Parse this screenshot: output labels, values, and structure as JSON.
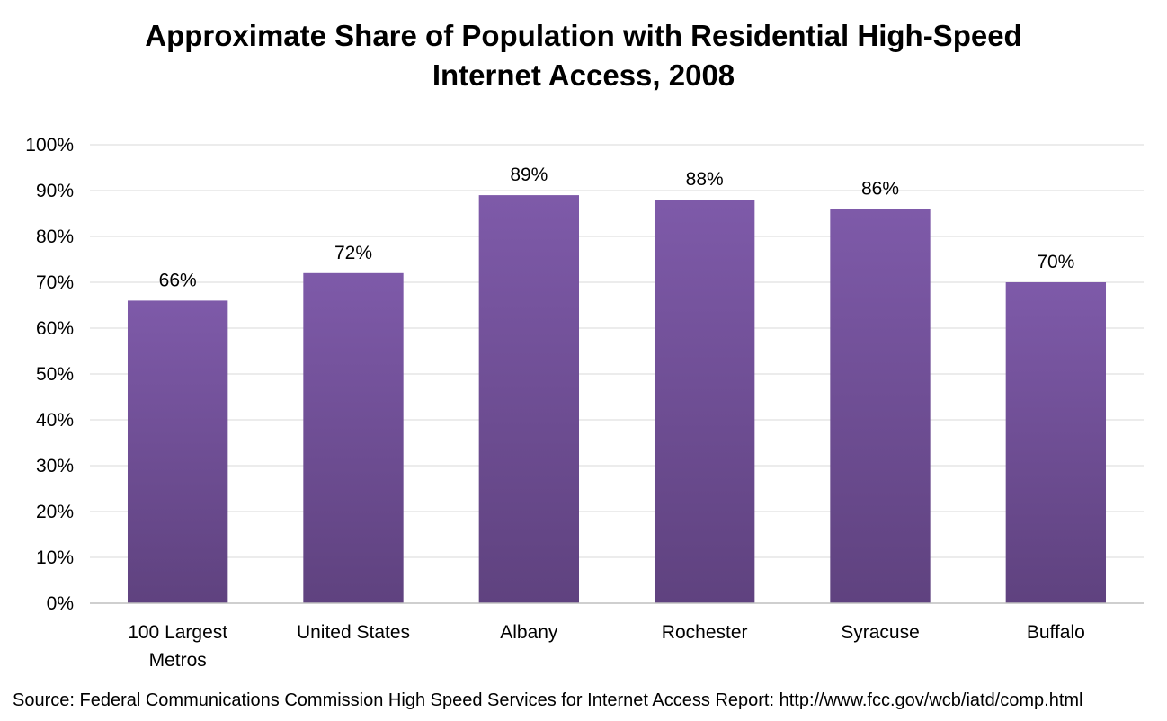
{
  "chart_data": {
    "type": "bar",
    "title_lines": [
      "Approximate Share of Population with Residential High-Speed",
      "Internet Access, 2008"
    ],
    "categories": [
      "100 Largest Metros",
      "United States",
      "Albany",
      "Rochester",
      "Syracuse",
      "Buffalo"
    ],
    "category_label_lines": [
      [
        "100 Largest",
        "Metros"
      ],
      [
        "United States"
      ],
      [
        "Albany"
      ],
      [
        "Rochester"
      ],
      [
        "Syracuse"
      ],
      [
        "Buffalo"
      ]
    ],
    "values": [
      66,
      72,
      89,
      88,
      86,
      70
    ],
    "data_labels": [
      "66%",
      "72%",
      "89%",
      "88%",
      "86%",
      "70%"
    ],
    "ylim": [
      0,
      100
    ],
    "yticks": [
      0,
      10,
      20,
      30,
      40,
      50,
      60,
      70,
      80,
      90,
      100
    ],
    "ytick_labels": [
      "0%",
      "10%",
      "20%",
      "30%",
      "40%",
      "50%",
      "60%",
      "70%",
      "80%",
      "90%",
      "100%"
    ],
    "xlabel": "",
    "ylabel": "",
    "grid": true,
    "legend": "none",
    "bar_color_top": "#7e5aa9",
    "bar_color_bottom": "#5f427f",
    "grid_color": "#d9d9d9",
    "axis_color": "#bfbfbf"
  },
  "source": "Source: Federal Communications Commission High Speed Services for Internet Access Report: http://www.fcc.gov/wcb/iatd/comp.html"
}
